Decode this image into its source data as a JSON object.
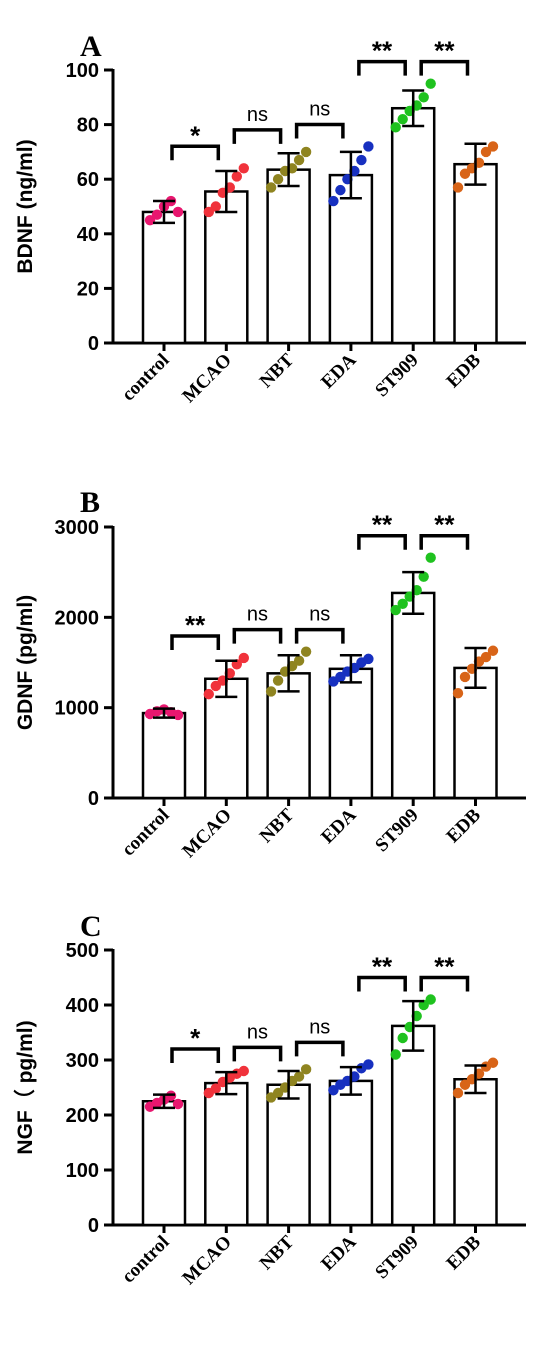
{
  "chart_data": [
    {
      "type": "bar",
      "panel_label": "A",
      "ylabel": "BDNF (ng/ml)",
      "categories": [
        "control",
        "MCAO",
        "NBT",
        "EDA",
        "ST909",
        "EDB"
      ],
      "colors": [
        "#e8176f",
        "#f0323b",
        "#8f8420",
        "#1730c0",
        "#1fc21f",
        "#d86418"
      ],
      "values": [
        48,
        55.5,
        63.5,
        61.5,
        86,
        65.5
      ],
      "errors": [
        4,
        7.5,
        6,
        8.5,
        6.5,
        7.5
      ],
      "points": [
        [
          45,
          47,
          50,
          52,
          48
        ],
        [
          48,
          50,
          55,
          57,
          61,
          64
        ],
        [
          57,
          60,
          63,
          64,
          67,
          70
        ],
        [
          52,
          56,
          60,
          63,
          67,
          72
        ],
        [
          79,
          82,
          85,
          87,
          90,
          95
        ],
        [
          57,
          62,
          64,
          66,
          70,
          72
        ]
      ],
      "ylim": [
        0,
        100
      ],
      "yticks": [
        "0",
        "20",
        "40",
        "60",
        "80",
        "100"
      ],
      "significance": [
        {
          "from": 0,
          "to": 1,
          "label": "*"
        },
        {
          "from": 1,
          "to": 2,
          "label": "ns"
        },
        {
          "from": 2,
          "to": 3,
          "label": "ns"
        },
        {
          "from": 3,
          "to": 4,
          "label": "**"
        },
        {
          "from": 4,
          "to": 5,
          "label": "**"
        }
      ]
    },
    {
      "type": "bar",
      "panel_label": "B",
      "ylabel": "GDNF (pg/ml)",
      "categories": [
        "control",
        "MCAO",
        "NBT",
        "EDA",
        "ST909",
        "EDB"
      ],
      "colors": [
        "#e8176f",
        "#f0323b",
        "#8f8420",
        "#1730c0",
        "#1fc21f",
        "#d86418"
      ],
      "values": [
        940,
        1320,
        1380,
        1430,
        2270,
        1440
      ],
      "errors": [
        50,
        200,
        200,
        150,
        230,
        220
      ],
      "points": [
        [
          930,
          960,
          980,
          950,
          920
        ],
        [
          1150,
          1240,
          1300,
          1380,
          1480,
          1550
        ],
        [
          1180,
          1300,
          1400,
          1460,
          1520,
          1620
        ],
        [
          1290,
          1340,
          1400,
          1440,
          1500,
          1540
        ],
        [
          2080,
          2150,
          2230,
          2300,
          2450,
          2660
        ],
        [
          1160,
          1340,
          1430,
          1510,
          1560,
          1630
        ]
      ],
      "ylim": [
        0,
        3000
      ],
      "yticks": [
        "0",
        "1000",
        "2000",
        "3000"
      ],
      "significance": [
        {
          "from": 0,
          "to": 1,
          "label": "**"
        },
        {
          "from": 1,
          "to": 2,
          "label": "ns"
        },
        {
          "from": 2,
          "to": 3,
          "label": "ns"
        },
        {
          "from": 3,
          "to": 4,
          "label": "**"
        },
        {
          "from": 4,
          "to": 5,
          "label": "**"
        }
      ]
    },
    {
      "type": "bar",
      "panel_label": "C",
      "ylabel": "NGF（ pg/ml)",
      "categories": [
        "control",
        "MCAO",
        "NBT",
        "EDA",
        "ST909",
        "EDB"
      ],
      "colors": [
        "#e8176f",
        "#f0323b",
        "#8f8420",
        "#1730c0",
        "#1fc21f",
        "#d86418"
      ],
      "values": [
        225,
        258,
        255,
        262,
        362,
        265
      ],
      "errors": [
        12,
        20,
        25,
        25,
        45,
        25
      ],
      "points": [
        [
          215,
          222,
          228,
          235,
          220
        ],
        [
          240,
          248,
          260,
          268,
          275,
          280
        ],
        [
          232,
          240,
          250,
          262,
          270,
          283
        ],
        [
          245,
          255,
          262,
          270,
          285,
          292
        ],
        [
          310,
          340,
          360,
          380,
          400,
          410
        ],
        [
          240,
          255,
          265,
          275,
          288,
          295
        ]
      ],
      "ylim": [
        0,
        500
      ],
      "yticks": [
        "0",
        "100",
        "200",
        "300",
        "400",
        "500"
      ],
      "significance": [
        {
          "from": 0,
          "to": 1,
          "label": "*"
        },
        {
          "from": 1,
          "to": 2,
          "label": "ns"
        },
        {
          "from": 2,
          "to": 3,
          "label": "ns"
        },
        {
          "from": 3,
          "to": 4,
          "label": "**"
        },
        {
          "from": 4,
          "to": 5,
          "label": "**"
        }
      ]
    }
  ]
}
